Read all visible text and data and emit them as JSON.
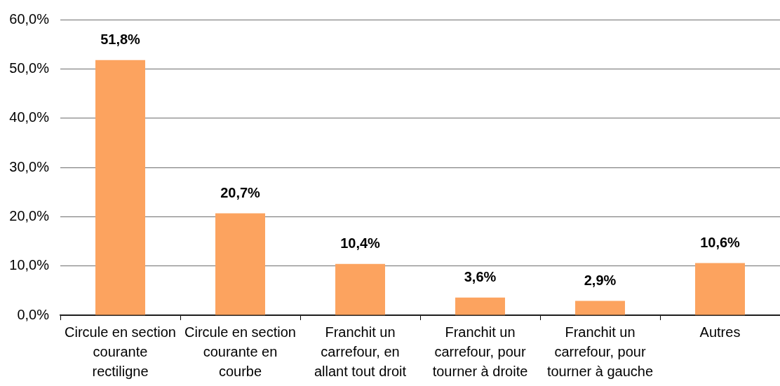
{
  "chart_data": {
    "type": "bar",
    "categories": [
      "Circule en section courante rectiligne",
      "Circule en section courante en courbe",
      "Franchit un carrefour, en allant tout droit",
      "Franchit un carrefour, pour tourner à droite",
      "Franchit un carrefour, pour tourner à gauche",
      "Autres"
    ],
    "values": [
      51.8,
      20.7,
      10.4,
      3.6,
      2.9,
      10.6
    ],
    "value_labels": [
      "51,8%",
      "20,7%",
      "10,4%",
      "3,6%",
      "2,9%",
      "10,6%"
    ],
    "color": "#fca35f",
    "ylim": [
      0,
      60
    ],
    "yticks": [
      {
        "value": 0,
        "label": "0,0%"
      },
      {
        "value": 10,
        "label": "10,0%"
      },
      {
        "value": 20,
        "label": "20,0%"
      },
      {
        "value": 30,
        "label": "30,0%"
      },
      {
        "value": 40,
        "label": "40,0%"
      },
      {
        "value": 50,
        "label": "50,0%"
      },
      {
        "value": 60,
        "label": "60,0%"
      }
    ],
    "grid": "y"
  }
}
